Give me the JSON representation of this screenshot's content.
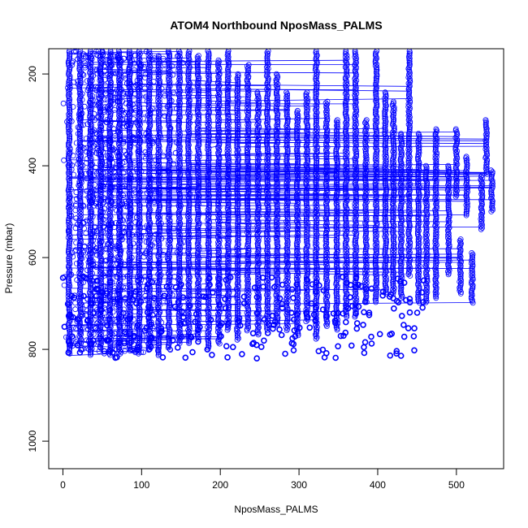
{
  "chart_data": {
    "type": "scatter",
    "title": "ATOM4 Northbound NposMass_PALMS",
    "xlabel": "NposMass_PALMS",
    "ylabel": "Pressure (mbar)",
    "xlim": [
      -18,
      560
    ],
    "ylim": [
      1060,
      145
    ],
    "y_reversed": true,
    "x_ticks": [
      0,
      100,
      200,
      300,
      400,
      500
    ],
    "y_ticks": [
      200,
      400,
      600,
      800,
      1000
    ],
    "grid": false,
    "legend": "none",
    "marker": "open-circle",
    "connected": true,
    "series_color": "#0000ff",
    "profiles": [
      {
        "x": 8,
        "p": [
          150,
          810
        ]
      },
      {
        "x": 22,
        "p": [
          150,
          790
        ]
      },
      {
        "x": 35,
        "p": [
          150,
          815
        ]
      },
      {
        "x": 48,
        "p": [
          160,
          800
        ]
      },
      {
        "x": 60,
        "p": [
          150,
          815
        ]
      },
      {
        "x": 72,
        "p": [
          150,
          810
        ]
      },
      {
        "x": 85,
        "p": [
          150,
          805
        ]
      },
      {
        "x": 97,
        "p": [
          150,
          810
        ]
      },
      {
        "x": 110,
        "p": [
          150,
          800
        ]
      },
      {
        "x": 122,
        "p": [
          160,
          815
        ]
      },
      {
        "x": 135,
        "p": [
          150,
          800
        ]
      },
      {
        "x": 148,
        "p": [
          150,
          790
        ]
      },
      {
        "x": 160,
        "p": [
          150,
          790
        ]
      },
      {
        "x": 172,
        "p": [
          160,
          780
        ]
      },
      {
        "x": 185,
        "p": [
          150,
          800
        ]
      },
      {
        "x": 198,
        "p": [
          170,
          790
        ]
      },
      {
        "x": 210,
        "p": [
          150,
          760
        ]
      },
      {
        "x": 222,
        "p": [
          200,
          780
        ]
      },
      {
        "x": 235,
        "p": [
          180,
          760
        ]
      },
      {
        "x": 248,
        "p": [
          240,
          770
        ]
      },
      {
        "x": 260,
        "p": [
          150,
          760
        ]
      },
      {
        "x": 272,
        "p": [
          200,
          750
        ]
      },
      {
        "x": 285,
        "p": [
          240,
          760
        ]
      },
      {
        "x": 298,
        "p": [
          280,
          770
        ]
      },
      {
        "x": 310,
        "p": [
          240,
          740
        ]
      },
      {
        "x": 322,
        "p": [
          150,
          780
        ]
      },
      {
        "x": 335,
        "p": [
          260,
          750
        ]
      },
      {
        "x": 348,
        "p": [
          300,
          760
        ]
      },
      {
        "x": 360,
        "p": [
          150,
          730
        ]
      },
      {
        "x": 372,
        "p": [
          150,
          730
        ]
      },
      {
        "x": 385,
        "p": [
          300,
          700
        ]
      },
      {
        "x": 398,
        "p": [
          150,
          700
        ]
      },
      {
        "x": 410,
        "p": [
          240,
          680
        ]
      },
      {
        "x": 420,
        "p": [
          260,
          680
        ]
      },
      {
        "x": 430,
        "p": [
          330,
          690
        ]
      },
      {
        "x": 440,
        "p": [
          150,
          640
        ]
      },
      {
        "x": 452,
        "p": [
          330,
          700
        ]
      },
      {
        "x": 462,
        "p": [
          400,
          700
        ]
      },
      {
        "x": 474,
        "p": [
          320,
          690
        ]
      },
      {
        "x": 490,
        "p": [
          400,
          640
        ]
      },
      {
        "x": 500,
        "p": [
          320,
          470
        ]
      },
      {
        "x": 505,
        "p": [
          560,
          680
        ]
      },
      {
        "x": 513,
        "p": [
          380,
          510
        ]
      },
      {
        "x": 520,
        "p": [
          590,
          700
        ]
      },
      {
        "x": 532,
        "p": [
          420,
          540
        ]
      },
      {
        "x": 538,
        "p": [
          300,
          420
        ]
      },
      {
        "x": 545,
        "p": [
          410,
          500
        ]
      }
    ]
  }
}
